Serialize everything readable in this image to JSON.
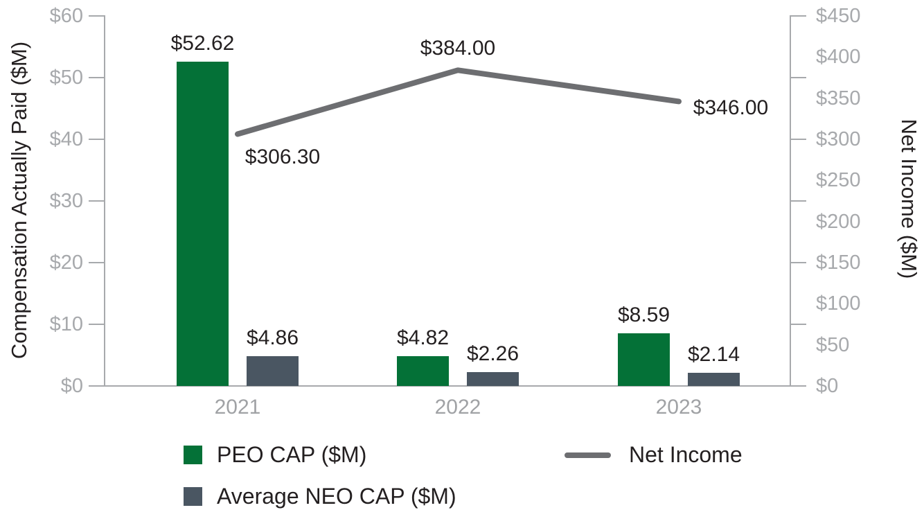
{
  "chart_data": {
    "type": "combo-bar-line",
    "categories": [
      "2021",
      "2022",
      "2023"
    ],
    "series": [
      {
        "name": "PEO CAP ($M)",
        "type": "bar",
        "axis": "left",
        "color": "#047137",
        "values": [
          52.62,
          4.82,
          8.59
        ],
        "labels": [
          "$52.62",
          "$4.82",
          "$8.59"
        ]
      },
      {
        "name": "Average NEO CAP ($M)",
        "type": "bar",
        "axis": "left",
        "color": "#4A5662",
        "values": [
          4.86,
          2.26,
          2.14
        ],
        "labels": [
          "$4.86",
          "$2.26",
          "$2.14"
        ]
      },
      {
        "name": "Net Income",
        "type": "line",
        "axis": "right",
        "color": "#6D6E71",
        "values": [
          306.3,
          384.0,
          346.0
        ],
        "labels": [
          "$306.30",
          "$384.00",
          "$346.00"
        ]
      }
    ],
    "left_axis": {
      "title": "Compensation Actually Paid ($M)",
      "min": 0,
      "max": 60,
      "tick_step": 10,
      "tick_labels": [
        "$0",
        "$10",
        "$20",
        "$30",
        "$40",
        "$50",
        "$60"
      ]
    },
    "right_axis": {
      "title": "Net Income ($M)",
      "min": 0,
      "max": 450,
      "label_step": 50,
      "tick_step": 75,
      "tick_labels": [
        "$0",
        "$50",
        "$100",
        "$150",
        "$200",
        "$250",
        "$300",
        "$350",
        "$400",
        "$450"
      ]
    },
    "grid": false,
    "legend_position": "bottom",
    "colors": {
      "axis_gray": "#A7A9AC",
      "label_dark": "#231F20",
      "tick_label_gray": "#A7A9AC"
    }
  }
}
